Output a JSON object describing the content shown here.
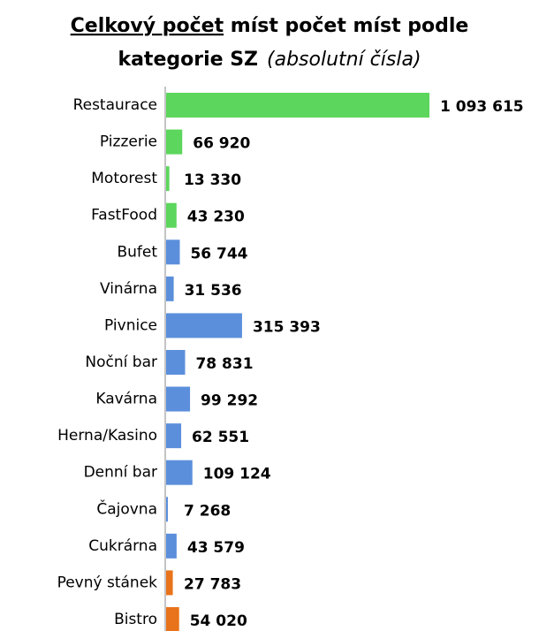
{
  "chart_data": {
    "type": "bar",
    "orientation": "horizontal",
    "title": {
      "underlined": "Celkový počet",
      "rest": "míst počet míst podle",
      "line2": "kategorie SZ"
    },
    "subtitle": "(absolutní čísla)",
    "categories": [
      "Restaurace",
      "Pizzerie",
      "Motorest",
      "FastFood",
      "Bufet",
      "Vinárna",
      "Pivnice",
      "Noční bar",
      "Kavárna",
      "Herna/Kasino",
      "Denní bar",
      "Čajovna",
      "Cukrárna",
      "Pevný stánek",
      "Bistro"
    ],
    "values": [
      1093615,
      66920,
      13330,
      43230,
      56744,
      31536,
      315393,
      78831,
      99292,
      62551,
      109124,
      7268,
      43579,
      27783,
      54020
    ],
    "value_labels": [
      "1 093 615",
      "66 920",
      "13 330",
      "43 230",
      "56 744",
      "31 536",
      "315 393",
      "78 831",
      "99 292",
      "62 551",
      "109 124",
      "7 268",
      "43 579",
      "27 783",
      "54 020"
    ],
    "colors": [
      "#5cd65c",
      "#5cd65c",
      "#5cd65c",
      "#5cd65c",
      "#5b8fdb",
      "#5b8fdb",
      "#5b8fdb",
      "#5b8fdb",
      "#5b8fdb",
      "#5b8fdb",
      "#5b8fdb",
      "#5b8fdb",
      "#5b8fdb",
      "#e8731a",
      "#e8731a"
    ]
  }
}
